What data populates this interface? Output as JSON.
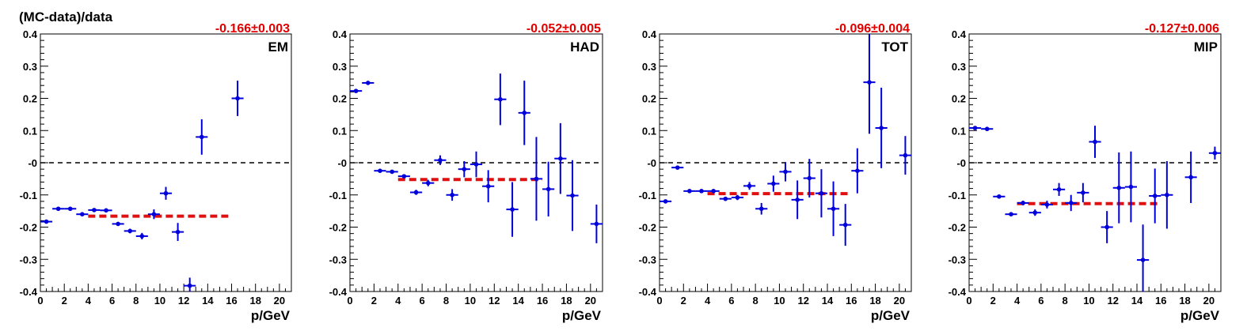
{
  "figure": {
    "ylabel": "(MC-data)/data",
    "xlabel": "p/GeV",
    "colors": {
      "points": "#0000dd",
      "fit": "#e01010",
      "zero_line": "#000000",
      "fit_label": "#e00000"
    }
  },
  "chart_data": [
    {
      "type": "scatter",
      "panel_label": "EM",
      "fit_label": "-0.166±0.003",
      "fit": {
        "value": -0.166,
        "x_range": [
          4,
          16
        ]
      },
      "xlim": [
        0,
        21
      ],
      "ylim": [
        -0.4,
        0.4
      ],
      "x_ticks": [
        0,
        2,
        4,
        6,
        8,
        10,
        12,
        14,
        16,
        18,
        20
      ],
      "y_ticks": [
        0.4,
        0.3,
        0.2,
        0.1,
        0,
        -0.1,
        -0.2,
        -0.3,
        -0.4
      ],
      "y_tick_labels": [
        "0.4",
        "0.3",
        "0.2",
        "0.1",
        "-0",
        "-0.1",
        "-0.2",
        "-0.3",
        "-0.4"
      ],
      "points": [
        {
          "x": 0.5,
          "y": -0.183,
          "err": 0.005
        },
        {
          "x": 1.5,
          "y": -0.143,
          "err": 0.004
        },
        {
          "x": 2.5,
          "y": -0.143,
          "err": 0.004
        },
        {
          "x": 3.5,
          "y": -0.16,
          "err": 0.004
        },
        {
          "x": 4.5,
          "y": -0.147,
          "err": 0.005
        },
        {
          "x": 5.5,
          "y": -0.148,
          "err": 0.005
        },
        {
          "x": 6.5,
          "y": -0.19,
          "err": 0.006
        },
        {
          "x": 7.5,
          "y": -0.212,
          "err": 0.007
        },
        {
          "x": 8.5,
          "y": -0.228,
          "err": 0.01
        },
        {
          "x": 9.5,
          "y": -0.16,
          "err": 0.015
        },
        {
          "x": 10.5,
          "y": -0.095,
          "err": 0.02
        },
        {
          "x": 11.5,
          "y": -0.215,
          "err": 0.028
        },
        {
          "x": 12.5,
          "y": -0.382,
          "err": 0.025
        },
        {
          "x": 13.5,
          "y": 0.08,
          "err": 0.055
        },
        {
          "x": 16.5,
          "y": 0.2,
          "err": 0.055
        }
      ]
    },
    {
      "type": "scatter",
      "panel_label": "HAD",
      "fit_label": "-0.052±0.005",
      "fit": {
        "value": -0.052,
        "x_range": [
          4,
          16
        ]
      },
      "xlim": [
        0,
        21
      ],
      "ylim": [
        -0.4,
        0.4
      ],
      "x_ticks": [
        0,
        2,
        4,
        6,
        8,
        10,
        12,
        14,
        16,
        18,
        20
      ],
      "y_ticks": [
        0.4,
        0.3,
        0.2,
        0.1,
        0,
        -0.1,
        -0.2,
        -0.3,
        -0.4
      ],
      "y_tick_labels": [
        "0.4",
        "0.3",
        "0.2",
        "0.1",
        "-0",
        "-0.1",
        "-0.2",
        "-0.3",
        "-0.4"
      ],
      "points": [
        {
          "x": 0.5,
          "y": 0.223,
          "err": 0.006
        },
        {
          "x": 1.5,
          "y": 0.248,
          "err": 0.005
        },
        {
          "x": 2.5,
          "y": -0.025,
          "err": 0.004
        },
        {
          "x": 3.5,
          "y": -0.028,
          "err": 0.004
        },
        {
          "x": 4.5,
          "y": -0.042,
          "err": 0.006
        },
        {
          "x": 5.5,
          "y": -0.092,
          "err": 0.008
        },
        {
          "x": 6.5,
          "y": -0.063,
          "err": 0.01
        },
        {
          "x": 7.5,
          "y": 0.008,
          "err": 0.015
        },
        {
          "x": 8.5,
          "y": -0.1,
          "err": 0.018
        },
        {
          "x": 9.5,
          "y": -0.02,
          "err": 0.025
        },
        {
          "x": 10.5,
          "y": -0.005,
          "err": 0.04
        },
        {
          "x": 11.5,
          "y": -0.073,
          "err": 0.05
        },
        {
          "x": 12.5,
          "y": 0.197,
          "err": 0.08
        },
        {
          "x": 13.5,
          "y": -0.145,
          "err": 0.085
        },
        {
          "x": 14.5,
          "y": 0.155,
          "err": 0.1
        },
        {
          "x": 15.5,
          "y": -0.05,
          "err": 0.13
        },
        {
          "x": 16.5,
          "y": -0.082,
          "err": 0.085
        },
        {
          "x": 17.5,
          "y": 0.013,
          "err": 0.11
        },
        {
          "x": 18.5,
          "y": -0.102,
          "err": 0.11
        },
        {
          "x": 20.5,
          "y": -0.19,
          "err": 0.06
        }
      ]
    },
    {
      "type": "scatter",
      "panel_label": "TOT",
      "fit_label": "-0.096±0.004",
      "fit": {
        "value": -0.096,
        "x_range": [
          4,
          16
        ]
      },
      "xlim": [
        0,
        21
      ],
      "ylim": [
        -0.4,
        0.4
      ],
      "x_ticks": [
        0,
        2,
        4,
        6,
        8,
        10,
        12,
        14,
        16,
        18,
        20
      ],
      "y_ticks": [
        0.4,
        0.3,
        0.2,
        0.1,
        0,
        -0.1,
        -0.2,
        -0.3,
        -0.4
      ],
      "y_tick_labels": [
        "0.4",
        "0.3",
        "0.2",
        "0.1",
        "-0",
        "-0.1",
        "-0.2",
        "-0.3",
        "-0.4"
      ],
      "points": [
        {
          "x": 0.5,
          "y": -0.12,
          "err": 0.006
        },
        {
          "x": 1.5,
          "y": -0.015,
          "err": 0.004
        },
        {
          "x": 2.5,
          "y": -0.088,
          "err": 0.004
        },
        {
          "x": 3.5,
          "y": -0.088,
          "err": 0.004
        },
        {
          "x": 4.5,
          "y": -0.088,
          "err": 0.005
        },
        {
          "x": 5.5,
          "y": -0.112,
          "err": 0.006
        },
        {
          "x": 6.5,
          "y": -0.108,
          "err": 0.008
        },
        {
          "x": 7.5,
          "y": -0.072,
          "err": 0.012
        },
        {
          "x": 8.5,
          "y": -0.143,
          "err": 0.018
        },
        {
          "x": 9.5,
          "y": -0.065,
          "err": 0.025
        },
        {
          "x": 10.5,
          "y": -0.028,
          "err": 0.03
        },
        {
          "x": 11.5,
          "y": -0.115,
          "err": 0.06
        },
        {
          "x": 12.5,
          "y": -0.048,
          "err": 0.06
        },
        {
          "x": 13.5,
          "y": -0.095,
          "err": 0.075
        },
        {
          "x": 14.5,
          "y": -0.143,
          "err": 0.085
        },
        {
          "x": 15.5,
          "y": -0.193,
          "err": 0.065
        },
        {
          "x": 16.5,
          "y": -0.025,
          "err": 0.07
        },
        {
          "x": 17.5,
          "y": 0.25,
          "err": 0.16
        },
        {
          "x": 18.5,
          "y": 0.108,
          "err": 0.125
        },
        {
          "x": 20.5,
          "y": 0.023,
          "err": 0.06
        }
      ]
    },
    {
      "type": "scatter",
      "panel_label": "MIP",
      "fit_label": "-0.127±0.006",
      "fit": {
        "value": -0.127,
        "x_range": [
          4,
          16
        ]
      },
      "xlim": [
        0,
        21
      ],
      "ylim": [
        -0.4,
        0.4
      ],
      "x_ticks": [
        0,
        2,
        4,
        6,
        8,
        10,
        12,
        14,
        16,
        18,
        20
      ],
      "y_ticks": [
        0.4,
        0.3,
        0.2,
        0.1,
        0,
        -0.1,
        -0.2,
        -0.3,
        -0.4
      ],
      "y_tick_labels": [
        "0.4",
        "0.3",
        "0.2",
        "0.1",
        "-0",
        "-0.1",
        "-0.2",
        "-0.3",
        "-0.4"
      ],
      "points": [
        {
          "x": 0.5,
          "y": 0.108,
          "err": 0.005
        },
        {
          "x": 1.5,
          "y": 0.105,
          "err": 0.005
        },
        {
          "x": 2.5,
          "y": -0.105,
          "err": 0.004
        },
        {
          "x": 3.5,
          "y": -0.16,
          "err": 0.005
        },
        {
          "x": 4.5,
          "y": -0.125,
          "err": 0.007
        },
        {
          "x": 5.5,
          "y": -0.155,
          "err": 0.01
        },
        {
          "x": 6.5,
          "y": -0.13,
          "err": 0.012
        },
        {
          "x": 7.5,
          "y": -0.083,
          "err": 0.02
        },
        {
          "x": 8.5,
          "y": -0.125,
          "err": 0.025
        },
        {
          "x": 9.5,
          "y": -0.093,
          "err": 0.03
        },
        {
          "x": 10.5,
          "y": 0.065,
          "err": 0.05
        },
        {
          "x": 11.5,
          "y": -0.2,
          "err": 0.05
        },
        {
          "x": 12.5,
          "y": -0.078,
          "err": 0.11
        },
        {
          "x": 13.5,
          "y": -0.075,
          "err": 0.11
        },
        {
          "x": 14.5,
          "y": -0.302,
          "err": 0.11
        },
        {
          "x": 15.5,
          "y": -0.103,
          "err": 0.085
        },
        {
          "x": 16.5,
          "y": -0.1,
          "err": 0.105
        },
        {
          "x": 18.5,
          "y": -0.045,
          "err": 0.08
        },
        {
          "x": 20.5,
          "y": 0.03,
          "err": 0.02
        }
      ]
    }
  ]
}
